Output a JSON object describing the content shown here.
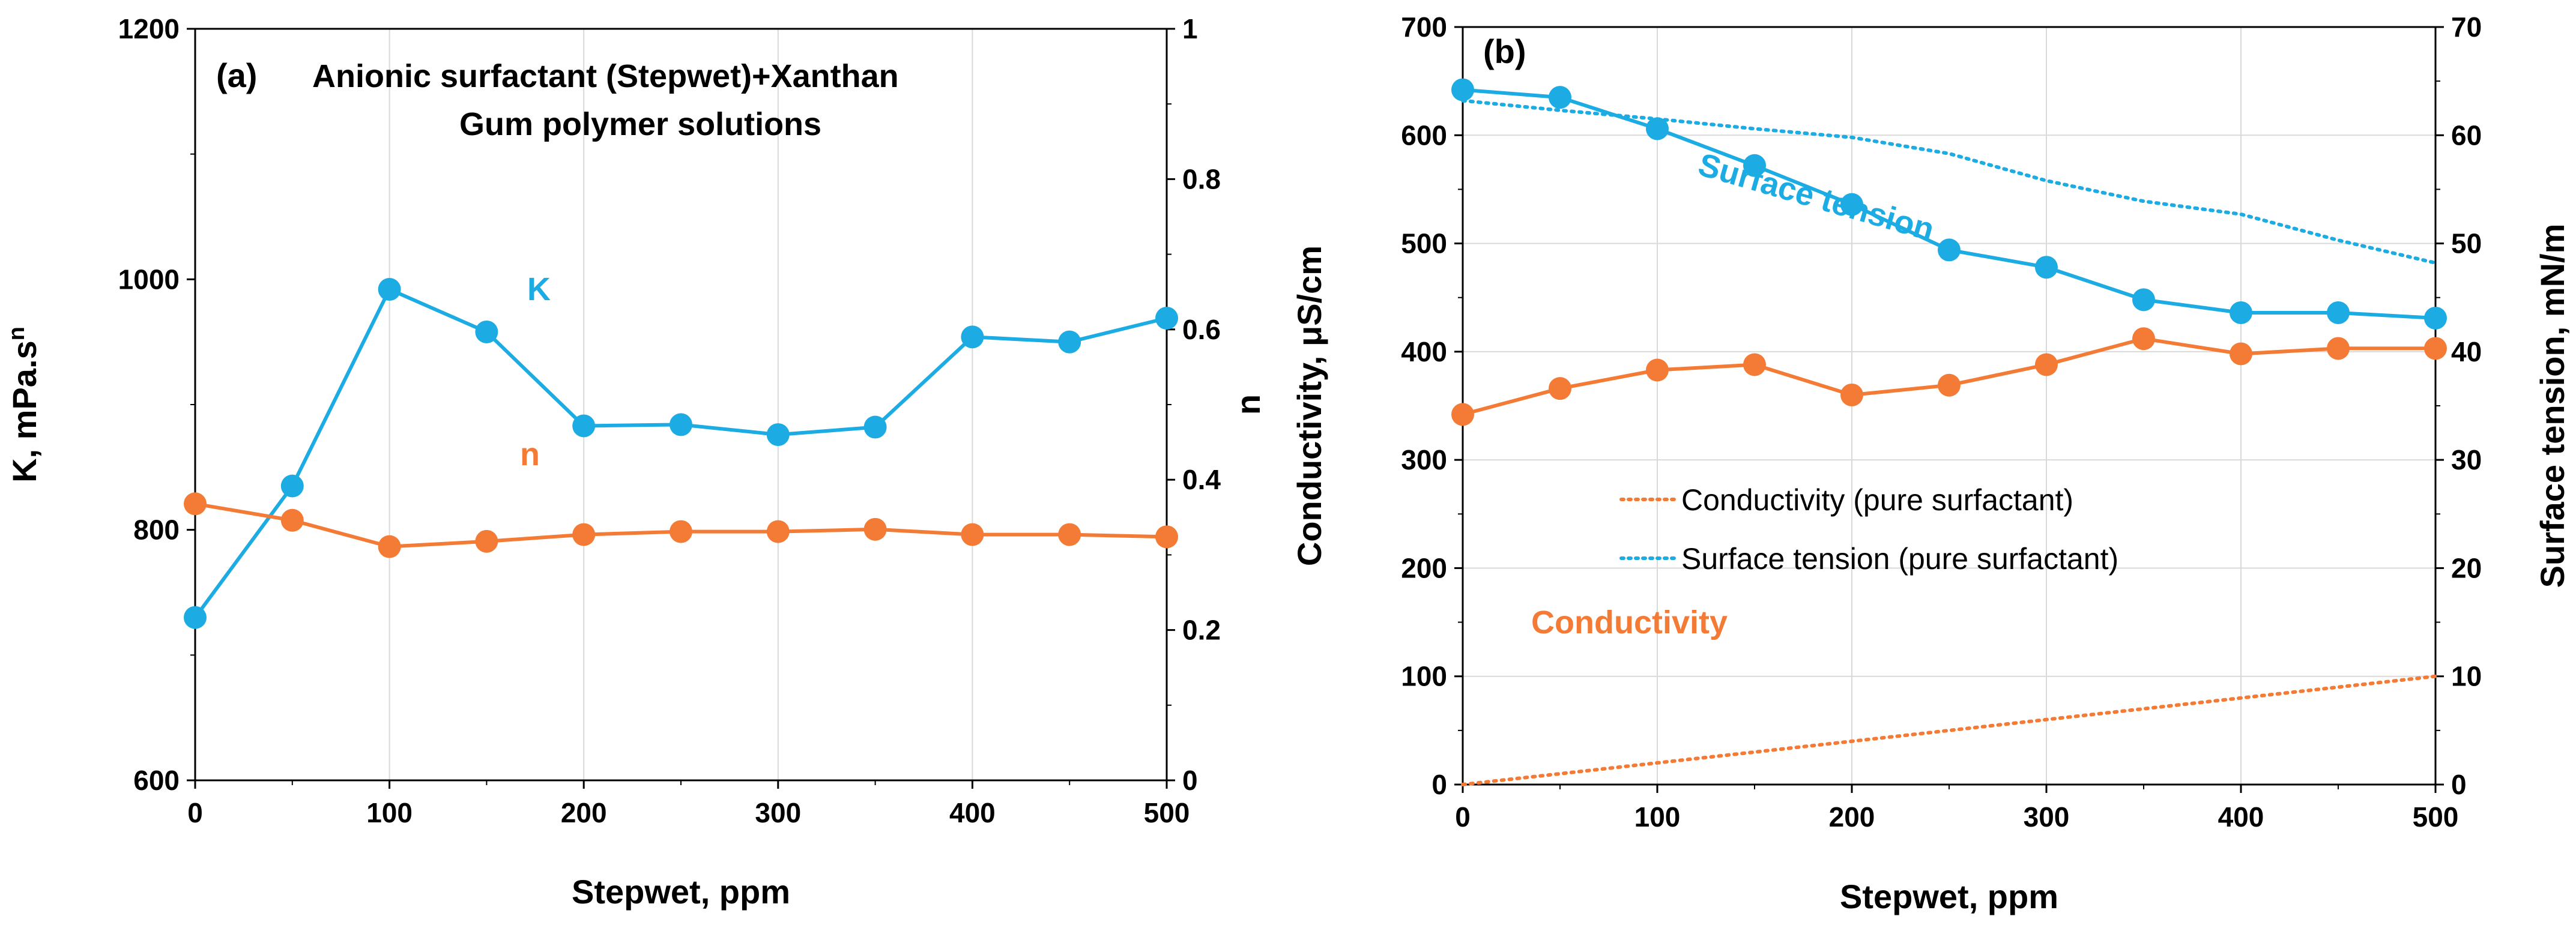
{
  "colors": {
    "blue": "#1CACE3",
    "orange": "#F47B35",
    "grid": "#d9d9d9"
  },
  "chart_data": [
    {
      "panel": "(a)",
      "type": "line",
      "title_lines": [
        "Anionic surfactant (Stepwet)+Xanthan",
        "Gum polymer solutions"
      ],
      "xlabel": "Stepwet, ppm",
      "ylabel_left": "K, mPa.s",
      "ylabel_left_sup": "n",
      "ylabel_right": "n",
      "xlim": [
        0,
        500
      ],
      "ylim_left": [
        600,
        1200
      ],
      "ylim_right": [
        0,
        1
      ],
      "x_ticks": [
        "0",
        "100",
        "200",
        "300",
        "400",
        "500"
      ],
      "y_left_ticks": [
        "600",
        "800",
        "1000",
        "1200"
      ],
      "y_right_ticks": [
        "0",
        "0.2",
        "0.4",
        "0.6",
        "0.8",
        "1"
      ],
      "x": [
        0,
        50,
        100,
        150,
        200,
        250,
        300,
        350,
        400,
        450,
        500
      ],
      "series": [
        {
          "name": "K",
          "axis": "left",
          "color": "blue",
          "values": [
            730,
            835,
            992,
            958,
            883,
            884,
            876,
            882,
            954,
            950,
            969
          ]
        },
        {
          "name": "n",
          "axis": "right",
          "color": "orange",
          "values": [
            0.368,
            0.346,
            0.311,
            0.318,
            0.327,
            0.331,
            0.331,
            0.334,
            0.327,
            0.327,
            0.324
          ]
        }
      ],
      "annotations": [
        {
          "text": "K",
          "color": "blue"
        },
        {
          "text": "n",
          "color": "orange"
        }
      ]
    },
    {
      "panel": "(b)",
      "type": "line",
      "xlabel": "Stepwet, ppm",
      "ylabel_left": "Conductivity, μS/cm",
      "ylabel_right": "Surface tension, mN/m",
      "xlim": [
        0,
        500
      ],
      "ylim_left": [
        0,
        700
      ],
      "ylim_right": [
        0,
        70
      ],
      "x_ticks": [
        "0",
        "100",
        "200",
        "300",
        "400",
        "500"
      ],
      "y_left_ticks": [
        "0",
        "100",
        "200",
        "300",
        "400",
        "500",
        "600",
        "700"
      ],
      "y_right_ticks": [
        "0",
        "10",
        "20",
        "30",
        "40",
        "50",
        "60",
        "70"
      ],
      "x": [
        0,
        50,
        100,
        150,
        200,
        250,
        300,
        350,
        400,
        450,
        500
      ],
      "series": [
        {
          "name": "Surface tension",
          "axis": "right",
          "color": "blue",
          "style": "solid-marker",
          "values": [
            64.2,
            63.5,
            60.6,
            57.2,
            53.6,
            49.4,
            47.8,
            44.8,
            43.6,
            43.6,
            43.1
          ]
        },
        {
          "name": "Conductivity",
          "axis": "left",
          "color": "orange",
          "style": "solid-marker",
          "values": [
            342,
            366,
            383,
            388,
            360,
            369,
            388,
            412,
            398,
            403,
            403
          ]
        },
        {
          "name": "Surface tension (pure surfactant)",
          "axis": "right",
          "color": "blue",
          "style": "dotted",
          "values": [
            63.2,
            62.3,
            61.5,
            60.6,
            59.8,
            58.3,
            55.8,
            53.9,
            52.7,
            50.3,
            48.2
          ]
        },
        {
          "name": "Conductivity (pure surfactant)",
          "axis": "left",
          "color": "orange",
          "style": "dotted",
          "values": [
            0,
            10,
            20,
            30,
            40,
            50,
            60,
            70,
            80,
            90,
            100
          ]
        }
      ],
      "annotations": [
        {
          "text": "Surface tension",
          "color": "blue"
        },
        {
          "text": "Conductivity",
          "color": "orange"
        }
      ],
      "legend": [
        "Conductivity (pure surfactant)",
        "Surface tension (pure surfactant)"
      ]
    }
  ]
}
